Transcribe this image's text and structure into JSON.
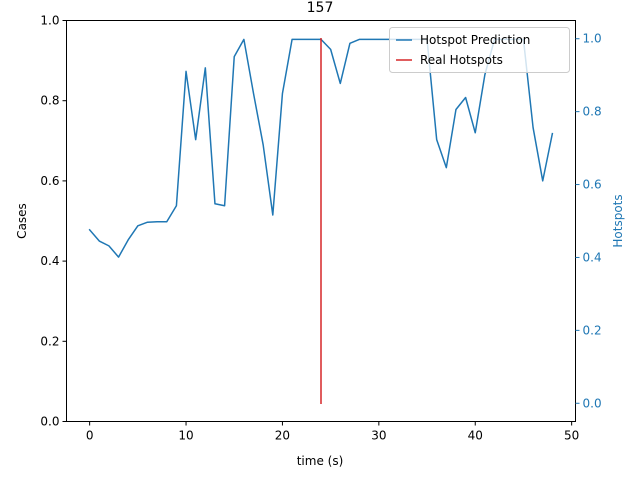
{
  "chart_data": {
    "type": "line",
    "title": "157",
    "xlabel": "time (s)",
    "ylabel": "Cases",
    "ylabel_right": "Hotspots",
    "xlim": [
      -2.4,
      50.4
    ],
    "ylim": [
      0,
      1
    ],
    "ylim_right": [
      -0.05,
      1.05
    ],
    "x_ticks": [
      0,
      10,
      20,
      30,
      40,
      50
    ],
    "x_tick_labels": [
      "0",
      "10",
      "20",
      "30",
      "40",
      "50"
    ],
    "y_ticks": [
      0,
      0.2,
      0.4,
      0.6,
      0.8,
      1.0
    ],
    "y_tick_labels": [
      "0.0",
      "0.2",
      "0.4",
      "0.6",
      "0.8",
      "1.0"
    ],
    "y_ticks_right": [
      0,
      0.2,
      0.4,
      0.6,
      0.8,
      1.0
    ],
    "y_tick_labels_right": [
      "0.0",
      "0.2",
      "0.4",
      "0.6",
      "0.8",
      "1.0"
    ],
    "grid": false,
    "legend_position": "top-right",
    "series": [
      {
        "name": "Hotspot Prediction",
        "color": "#1f77b4",
        "axis": "left",
        "x": [
          0,
          1,
          2,
          3,
          4,
          5,
          6,
          7,
          8,
          9,
          10,
          11,
          12,
          13,
          14,
          15,
          16,
          17,
          18,
          19,
          20,
          21,
          22,
          23,
          24,
          25,
          26,
          27,
          28,
          29,
          30,
          31,
          32,
          33,
          34,
          35,
          36,
          37,
          38,
          39,
          40,
          41,
          42,
          43,
          44,
          45,
          46,
          47,
          48
        ],
        "values": [
          0.478,
          0.45,
          0.438,
          0.41,
          0.453,
          0.488,
          0.497,
          0.498,
          0.498,
          0.538,
          0.873,
          0.703,
          0.882,
          0.543,
          0.538,
          0.91,
          0.953,
          0.818,
          0.69,
          0.515,
          0.818,
          0.953,
          0.953,
          0.953,
          0.953,
          0.928,
          0.843,
          0.943,
          0.953,
          0.953,
          0.953,
          0.953,
          0.953,
          0.953,
          0.953,
          0.953,
          0.703,
          0.633,
          0.778,
          0.808,
          0.72,
          0.865,
          0.953,
          0.953,
          0.953,
          0.953,
          0.733,
          0.6,
          0.718
        ]
      },
      {
        "name": "Real Hotspots",
        "color": "#d62728",
        "axis": "right",
        "x": [
          24,
          24
        ],
        "values": [
          0,
          1
        ]
      }
    ]
  }
}
